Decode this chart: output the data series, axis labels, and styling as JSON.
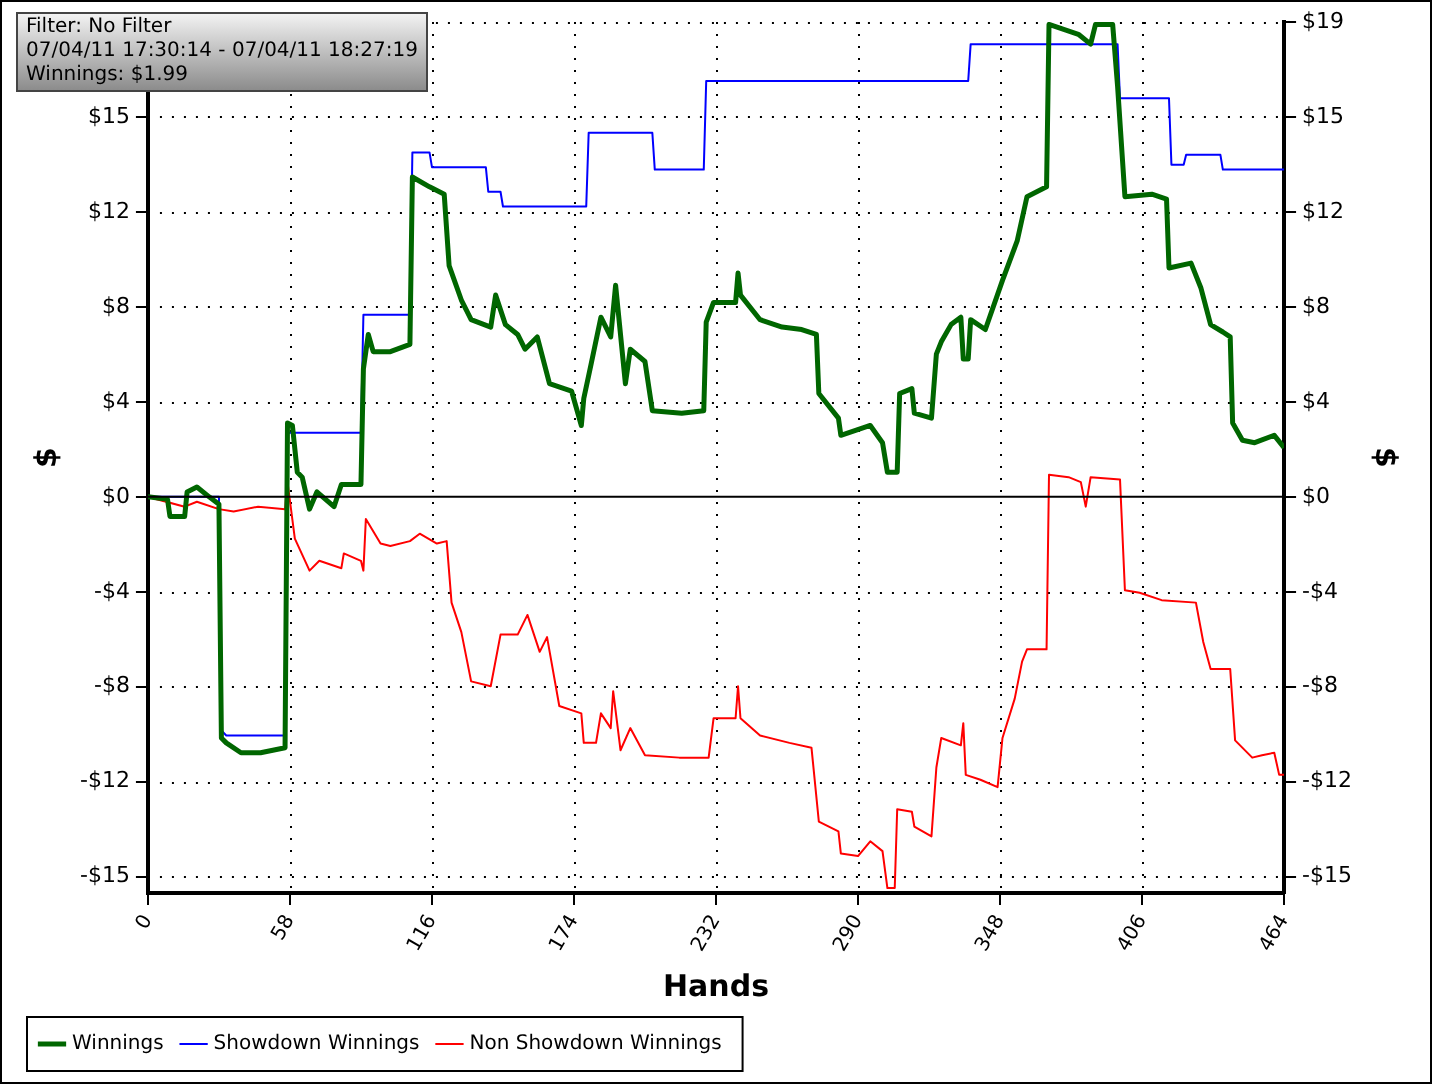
{
  "chart_data": {
    "type": "line",
    "xlabel": "Hands",
    "ylabel": "$",
    "y2label": "$",
    "annotations": [
      "Filter: No Filter",
      "07/04/11 17:30:14 - 07/04/11 18:27:19",
      "Winnings: $1.99"
    ],
    "xlim": [
      0,
      464
    ],
    "xticks": [
      0,
      58,
      116,
      174,
      232,
      290,
      348,
      406,
      464
    ],
    "ylim": [
      -16.1,
      19.3
    ],
    "yticks": [
      {
        "value": -15.44,
        "label": "-$15"
      },
      {
        "value": -11.58,
        "label": "-$12"
      },
      {
        "value": -7.72,
        "label": "-$8"
      },
      {
        "value": -3.86,
        "label": "-$4"
      },
      {
        "value": 0,
        "label": "$0"
      },
      {
        "value": 3.86,
        "label": "$4"
      },
      {
        "value": 7.72,
        "label": "$8"
      },
      {
        "value": 11.58,
        "label": "$12"
      },
      {
        "value": 15.44,
        "label": "$15"
      },
      {
        "value": 19.3,
        "label": null
      }
    ],
    "y2lim": [
      -16.1,
      19.3
    ],
    "y2ticks": [
      {
        "value": -15.44,
        "label": "-$15"
      },
      {
        "value": -11.58,
        "label": "-$12"
      },
      {
        "value": -7.72,
        "label": "-$8"
      },
      {
        "value": -3.86,
        "label": "-$4"
      },
      {
        "value": 0,
        "label": "$0"
      },
      {
        "value": 3.86,
        "label": "$4"
      },
      {
        "value": 7.72,
        "label": "$8"
      },
      {
        "value": 11.58,
        "label": "$12"
      },
      {
        "value": 15.44,
        "label": "$15"
      },
      {
        "value": 19.3,
        "label": "$19"
      }
    ],
    "grid": true,
    "legend": "bottom",
    "ref_lines": [
      {
        "axis": "y",
        "value": 0,
        "color": "#000000"
      }
    ],
    "series": [
      {
        "name": "Winnings",
        "color": "#006600",
        "x": [
          0,
          8,
          9,
          15,
          16,
          20,
          25,
          29,
          30,
          32,
          38,
          46,
          56,
          57,
          59,
          61,
          63,
          66,
          69,
          76,
          79,
          87,
          88,
          90,
          92,
          99,
          107,
          108,
          115,
          121,
          123,
          128,
          132,
          140,
          142,
          146,
          151,
          154,
          159,
          164,
          173,
          177,
          178,
          181,
          185,
          189,
          191,
          195,
          197,
          203,
          206,
          218,
          227,
          228,
          231,
          240,
          241,
          242,
          250,
          259,
          267,
          273,
          274,
          282,
          283,
          295,
          300,
          302,
          306,
          307,
          312,
          313,
          320,
          322,
          324,
          328,
          332,
          333,
          335,
          336,
          342,
          349,
          355,
          359,
          367,
          368,
          380,
          385,
          387,
          394,
          396,
          399,
          410,
          416,
          417,
          426,
          430,
          434,
          439,
          442,
          443,
          447,
          452,
          460,
          464
        ],
        "values": [
          0,
          -0.1,
          -0.8,
          -0.8,
          0.2,
          0.4,
          0,
          -0.3,
          -9.8,
          -10,
          -10.4,
          -10.4,
          -10.2,
          3.0,
          2.9,
          1.0,
          0.8,
          -0.5,
          0.2,
          -0.4,
          0.5,
          0.5,
          5.2,
          6.6,
          5.9,
          5.9,
          6.2,
          13.0,
          12.6,
          12.3,
          9.4,
          8.0,
          7.2,
          6.9,
          8.2,
          7.0,
          6.6,
          6.0,
          6.5,
          4.6,
          4.3,
          2.9,
          4.0,
          5.4,
          7.3,
          6.5,
          8.6,
          4.6,
          6.0,
          5.5,
          3.5,
          3.4,
          3.5,
          7.1,
          7.9,
          7.9,
          9.1,
          8.2,
          7.2,
          6.9,
          6.8,
          6.6,
          4.2,
          3.2,
          2.5,
          2.9,
          2.2,
          1.0,
          1.0,
          4.2,
          4.4,
          3.4,
          3.2,
          5.8,
          6.3,
          7.0,
          7.3,
          5.6,
          5.6,
          7.2,
          6.8,
          8.8,
          10.4,
          12.2,
          12.6,
          19.2,
          18.8,
          18.4,
          19.2,
          19.2,
          16.7,
          12.2,
          12.3,
          12.1,
          9.3,
          9.5,
          8.5,
          7.0,
          6.7,
          6.5,
          3.0,
          2.3,
          2.2,
          2.5,
          2.0
        ]
      },
      {
        "name": "Showdown Winnings",
        "color": "#0000ff",
        "x": [
          0,
          29,
          30,
          32,
          56,
          57,
          87,
          88,
          107,
          108,
          115,
          116,
          138,
          139,
          144,
          145,
          179,
          180,
          206,
          207,
          227,
          228,
          335,
          336,
          396,
          397,
          417,
          418,
          423,
          424,
          438,
          439,
          464
        ],
        "values": [
          0,
          0,
          -9.5,
          -9.7,
          -9.7,
          2.6,
          2.6,
          7.4,
          7.4,
          14.0,
          14.0,
          13.4,
          13.4,
          12.4,
          12.4,
          11.8,
          11.8,
          14.8,
          14.8,
          13.3,
          13.3,
          16.9,
          16.9,
          18.4,
          18.4,
          16.2,
          16.2,
          13.5,
          13.5,
          13.9,
          13.9,
          13.3,
          13.3
        ]
      },
      {
        "name": "Non Showdown Winnings",
        "color": "#ff0000",
        "x": [
          0,
          15,
          20,
          29,
          35,
          45,
          56,
          57,
          60,
          66,
          70,
          79,
          80,
          87,
          88,
          89,
          95,
          99,
          107,
          111,
          118,
          122,
          124,
          128,
          132,
          140,
          144,
          151,
          155,
          160,
          163,
          168,
          177,
          178,
          183,
          185,
          189,
          190,
          193,
          197,
          203,
          217,
          229,
          231,
          240,
          241,
          242,
          250,
          262,
          271,
          274,
          282,
          283,
          290,
          295,
          300,
          302,
          305,
          306,
          312,
          313,
          320,
          322,
          324,
          332,
          333,
          334,
          340,
          347,
          349,
          354,
          357,
          359,
          367,
          368,
          376,
          381,
          383,
          385,
          397,
          399,
          405,
          414,
          428,
          431,
          434,
          442,
          444,
          451,
          455,
          460,
          462,
          464
        ],
        "values": [
          0,
          -0.4,
          -0.2,
          -0.5,
          -0.6,
          -0.4,
          -0.5,
          0.6,
          -1.7,
          -3.0,
          -2.6,
          -2.9,
          -2.3,
          -2.6,
          -3.0,
          -0.9,
          -1.9,
          -2.0,
          -1.8,
          -1.5,
          -1.9,
          -1.8,
          -4.3,
          -5.5,
          -7.5,
          -7.7,
          -5.6,
          -5.6,
          -4.8,
          -6.3,
          -5.7,
          -8.5,
          -8.8,
          -10.0,
          -10.0,
          -8.8,
          -9.4,
          -7.9,
          -10.3,
          -9.4,
          -10.5,
          -10.6,
          -10.6,
          -9.0,
          -9.0,
          -7.7,
          -9.0,
          -9.7,
          -10.0,
          -10.2,
          -13.2,
          -13.6,
          -14.5,
          -14.6,
          -14.0,
          -14.4,
          -15.9,
          -15.9,
          -12.7,
          -12.8,
          -13.4,
          -13.8,
          -11.0,
          -9.8,
          -10.1,
          -9.2,
          -11.3,
          -11.5,
          -11.8,
          -9.8,
          -8.2,
          -6.7,
          -6.2,
          -6.2,
          0.9,
          0.8,
          0.6,
          -0.4,
          0.8,
          0.7,
          -3.8,
          -3.9,
          -4.2,
          -4.3,
          -5.9,
          -7.0,
          -7.0,
          -9.9,
          -10.6,
          -10.5,
          -10.4,
          -11.3,
          -11.3
        ]
      }
    ]
  }
}
